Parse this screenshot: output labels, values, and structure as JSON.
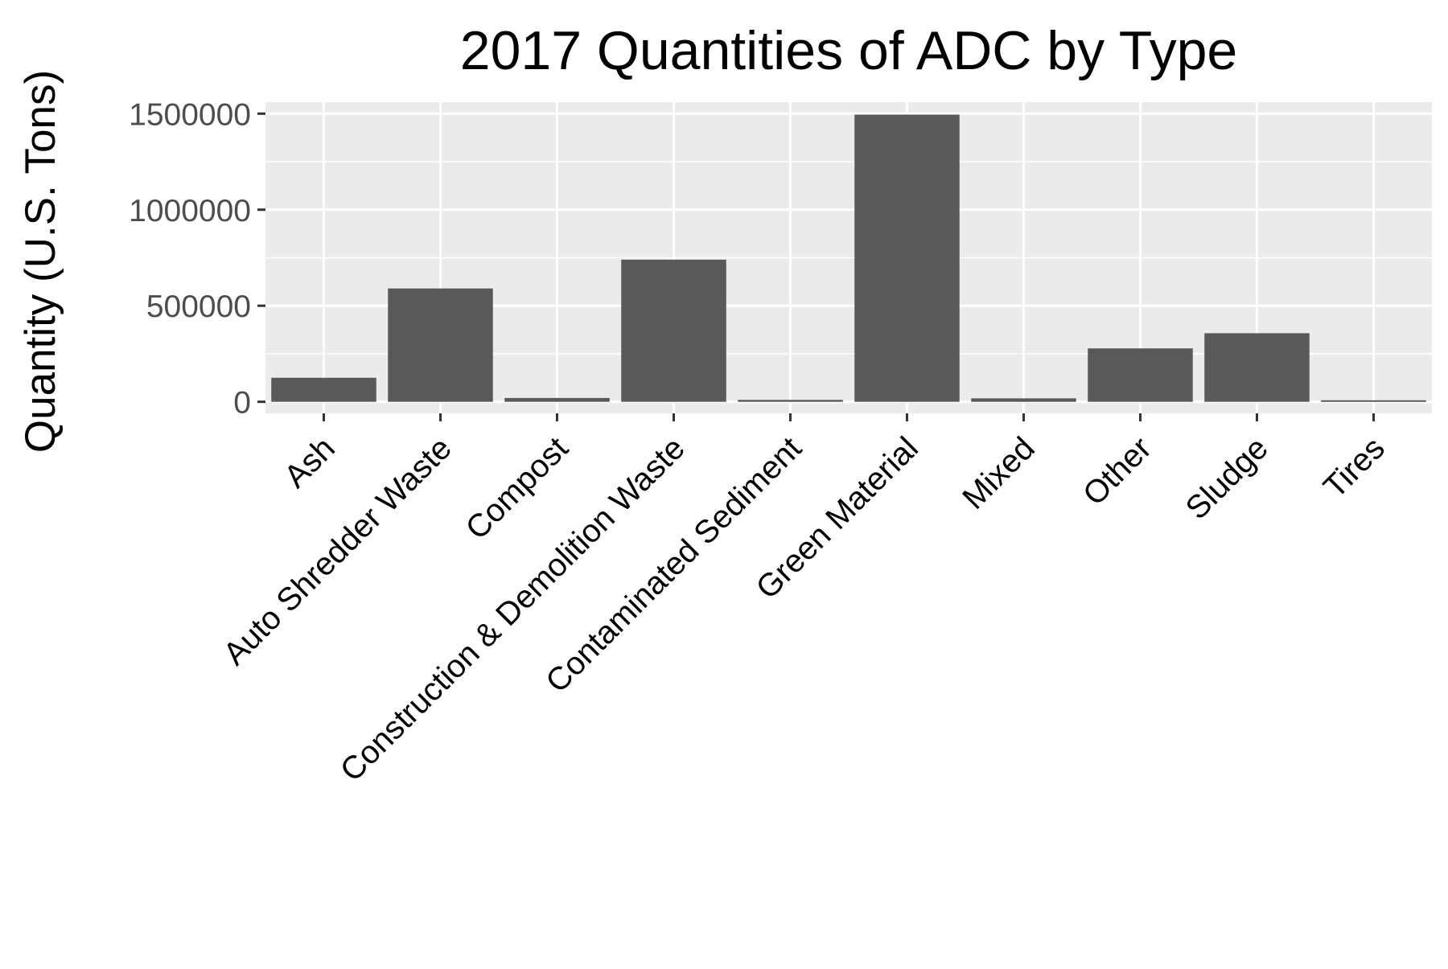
{
  "chart_data": {
    "type": "bar",
    "title": "2017 Quantities of ADC by Type",
    "xlabel": "",
    "ylabel": "Quantity (U.S. Tons)",
    "categories": [
      "Ash",
      "Auto Shredder Waste",
      "Compost",
      "Construction & Demolition Waste",
      "Contaminated Sediment",
      "Green Material",
      "Mixed",
      "Other",
      "Sludge",
      "Tires"
    ],
    "values": [
      125000,
      590000,
      20000,
      740000,
      10000,
      1495000,
      18000,
      278000,
      357000,
      8000
    ],
    "ylim": [
      -60000,
      1560000
    ],
    "yticks": [
      0,
      500000,
      1000000,
      1500000
    ],
    "ytick_labels": [
      "0",
      "500000",
      "1000000",
      "1500000"
    ],
    "grid": true,
    "legend": "none",
    "colors": {
      "bar": "#595959",
      "panel": "#ebebeb",
      "grid_major": "#ffffff",
      "grid_minor": "#f7f7f7",
      "tick": "#333333",
      "tick_label": "#4d4d4d"
    }
  }
}
